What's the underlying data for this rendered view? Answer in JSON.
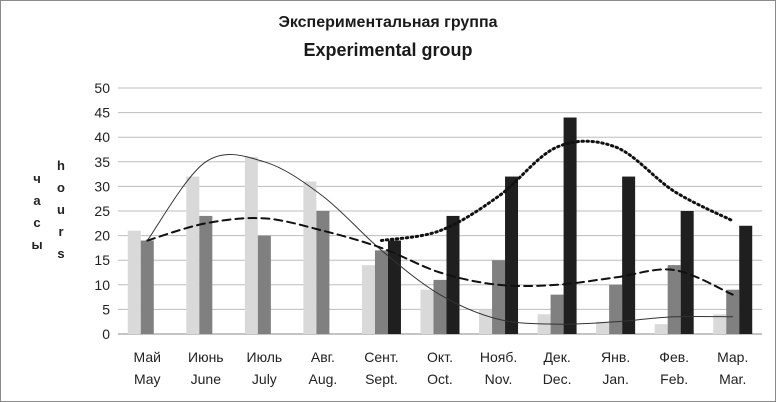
{
  "title": "Экспериментальная группа",
  "subtitle": "Experimental group",
  "ylabel_ru": [
    "ч",
    "а",
    "с",
    "ы"
  ],
  "ylabel_en": [
    "h",
    "o",
    "u",
    "r",
    "s"
  ],
  "chart_data": {
    "type": "bar",
    "categories": [
      [
        "Май",
        "May"
      ],
      [
        "Июнь",
        "June"
      ],
      [
        "Июль",
        "July"
      ],
      [
        "Авг.",
        "Aug."
      ],
      [
        "Сент.",
        "Sept."
      ],
      [
        "Окт.",
        "Oct."
      ],
      [
        "Нояб.",
        "Nov."
      ],
      [
        "Дек.",
        "Dec."
      ],
      [
        "Янв.",
        "Jan."
      ],
      [
        "Фев.",
        "Feb."
      ],
      [
        "Мар.",
        "Mar."
      ]
    ],
    "ylim": [
      0,
      50
    ],
    "yticks": [
      0,
      5,
      10,
      15,
      20,
      25,
      30,
      35,
      40,
      45,
      50
    ],
    "series": [
      {
        "values": [
          21,
          32,
          36,
          31,
          14,
          9,
          5,
          4,
          2.5,
          2,
          4
        ],
        "color": "#d9d9d9"
      },
      {
        "values": [
          19,
          24,
          20,
          25,
          17,
          11,
          15,
          8,
          10,
          14,
          9
        ],
        "color": "#808080"
      },
      {
        "values": [
          null,
          null,
          null,
          null,
          19,
          24,
          32,
          44,
          32,
          25,
          22
        ],
        "color": "#1f1f1f"
      }
    ],
    "trendlines": [
      {
        "style": "thin-solid",
        "values": [
          19,
          35,
          35,
          28,
          17,
          8,
          3,
          2,
          2.5,
          3.5,
          3.5
        ]
      },
      {
        "style": "dashed",
        "values": [
          19,
          22.5,
          23.5,
          21,
          17.5,
          12.5,
          10,
          10,
          11.5,
          13,
          8
        ]
      },
      {
        "style": "dotted",
        "values": [
          19,
          null,
          null,
          null,
          19,
          21,
          28,
          38,
          38,
          29,
          23
        ]
      }
    ]
  }
}
